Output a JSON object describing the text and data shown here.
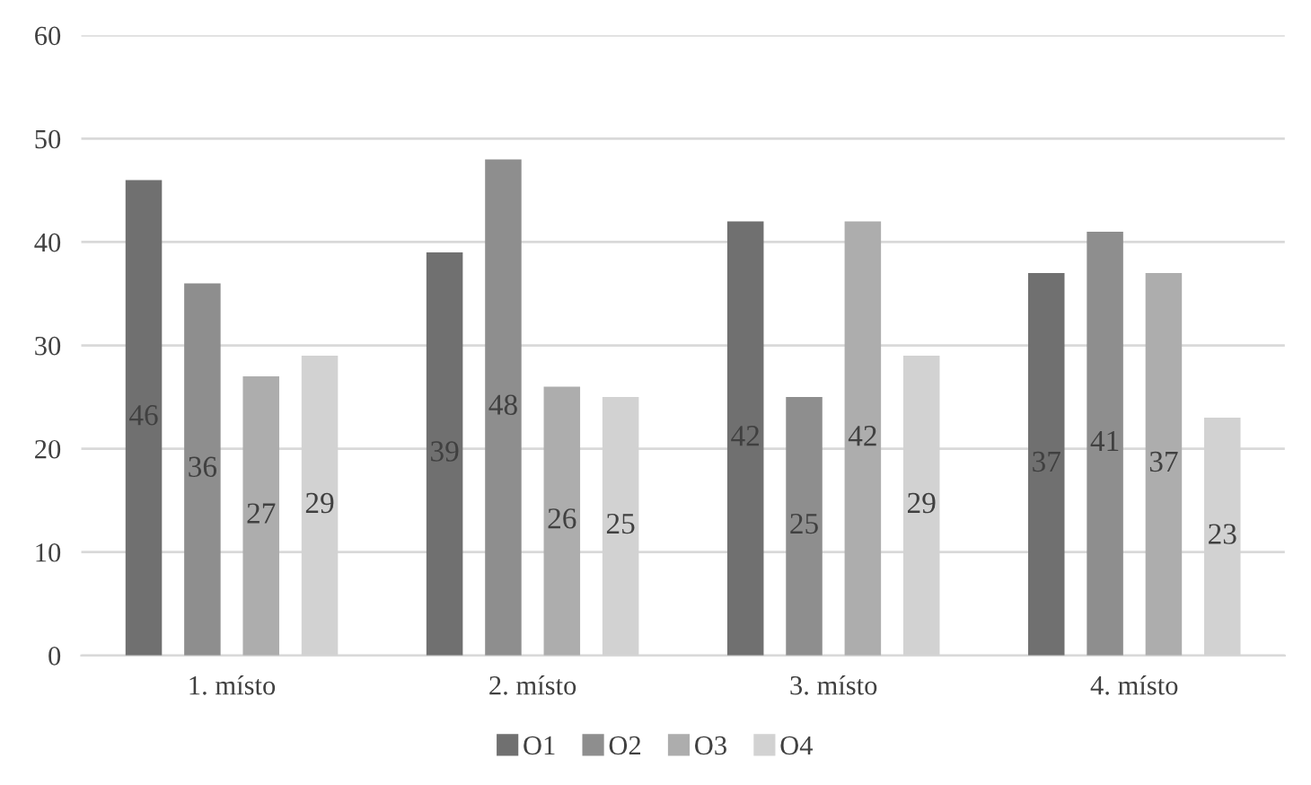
{
  "chart_data": {
    "type": "bar",
    "categories": [
      "1. místo",
      "2. místo",
      "3. místo",
      "4. místo"
    ],
    "series": [
      {
        "name": "O1",
        "color": "#707070",
        "values": [
          46,
          39,
          42,
          37
        ]
      },
      {
        "name": "O2",
        "color": "#8e8e8e",
        "values": [
          36,
          48,
          25,
          41
        ]
      },
      {
        "name": "O3",
        "color": "#adadad",
        "values": [
          27,
          26,
          42,
          37
        ]
      },
      {
        "name": "O4",
        "color": "#d2d2d2",
        "values": [
          29,
          25,
          29,
          23
        ]
      }
    ],
    "ylim": [
      0,
      60
    ],
    "yticks": [
      0,
      10,
      20,
      30,
      40,
      50,
      60
    ],
    "grid": "y",
    "legend": "bottom",
    "data_labels": true
  }
}
